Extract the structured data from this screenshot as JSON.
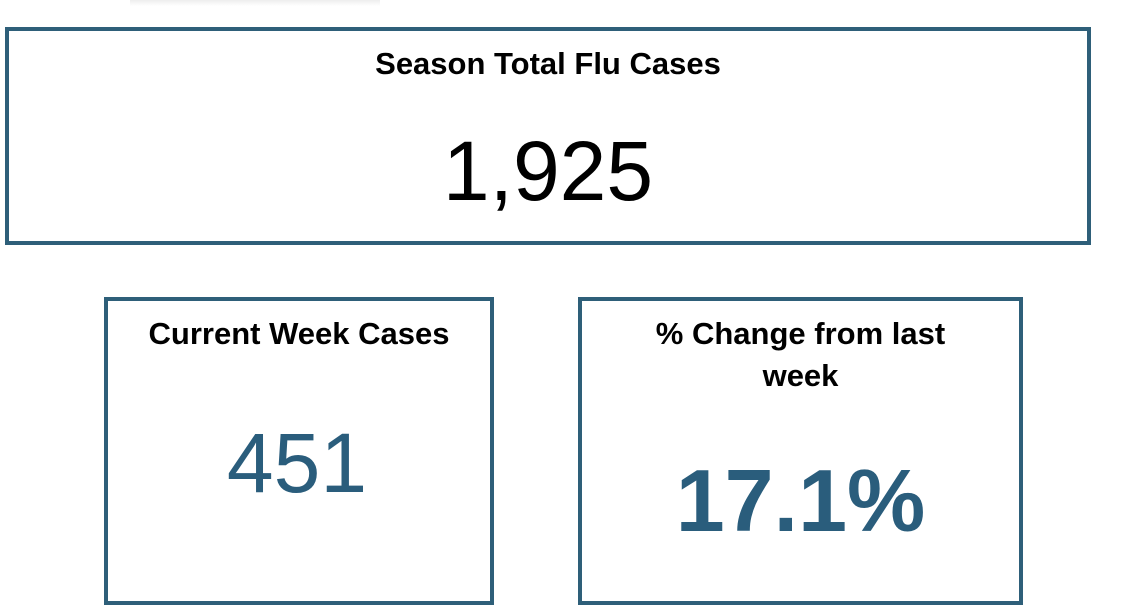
{
  "cards": [
    {
      "title": "Season Total Flu Cases",
      "value": "1,925"
    },
    {
      "title": "Current Week Cases",
      "value": "451"
    },
    {
      "title": "% Change from last week",
      "value": "17.1%"
    }
  ]
}
